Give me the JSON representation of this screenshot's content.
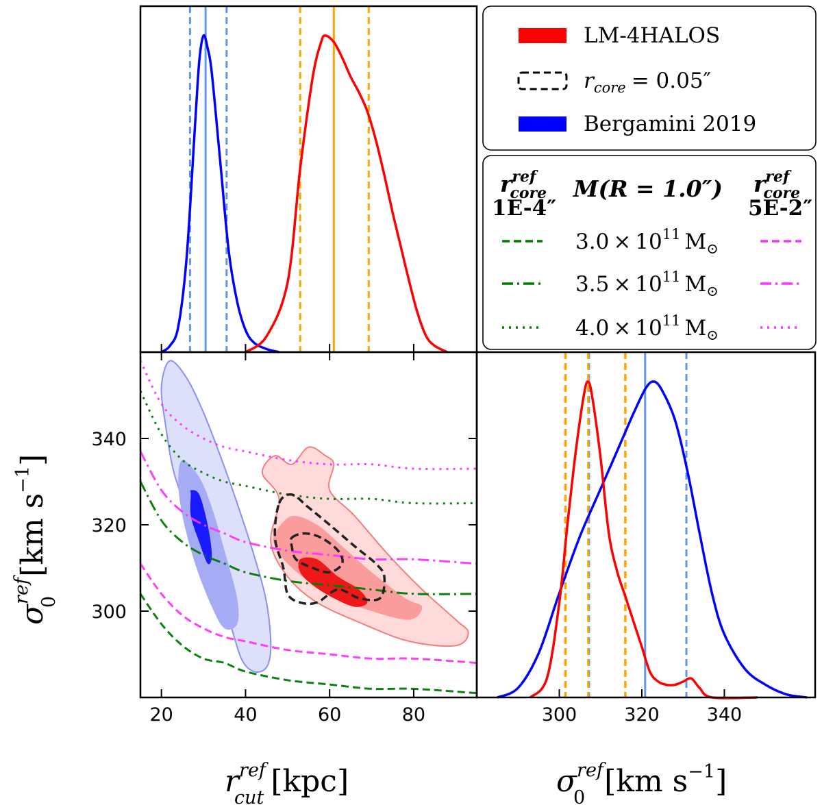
{
  "colors": {
    "lm": "#ff0000",
    "berg": "#0000ff",
    "berg_light": "#6495ed",
    "orange": "#ffa500",
    "green": "#007a00",
    "magenta": "#ff33ff",
    "core_contour": "#222222"
  },
  "legend_top": {
    "lm_label": "LM-4HALOS",
    "rcore_prefix": "r",
    "rcore_sub": "core",
    "rcore_eq": "= 0.05″",
    "berg_label": "Bergamini 2019"
  },
  "legend_mass": {
    "left_header_r": "r",
    "left_header_sup": "ref",
    "left_header_sub": "core",
    "left_value": "1E-4″",
    "center_header": "M(R = 1.0″)",
    "right_header_r": "r",
    "right_header_sup": "ref",
    "right_header_sub": "core",
    "right_value": "5E-2″",
    "rows": [
      {
        "mant": "3.0",
        "times": "×",
        "base": "10",
        "exp": "11",
        "unit": "M",
        "sun": "⊙",
        "style": "dashed"
      },
      {
        "mant": "3.5",
        "times": "×",
        "base": "10",
        "exp": "11",
        "unit": "M",
        "sun": "⊙",
        "style": "dashdot"
      },
      {
        "mant": "4.0",
        "times": "×",
        "base": "10",
        "exp": "11",
        "unit": "M",
        "sun": "⊙",
        "style": "dotted"
      }
    ]
  },
  "axes": {
    "x_label_sym": "r",
    "x_label_sup": "ref",
    "x_label_sub": "cut",
    "x_label_unit": "[kpc]",
    "y_label_sym": "σ",
    "y_label_sup": "ref",
    "y_label_sub": "0",
    "y_label_unit": "[km s",
    "y_label_exp": "−1",
    "y_label_close": "]",
    "x2_label_sym": "σ",
    "x2_label_sup": "ref",
    "x2_label_sub": "0",
    "x2_label_unit": "[km s",
    "x2_label_exp": "−1",
    "x2_label_close": "]"
  },
  "chart_data": {
    "type": "corner",
    "rcut": {
      "xlim": [
        15,
        95
      ],
      "ticks": [
        20,
        40,
        60,
        80
      ],
      "lm_kde": {
        "x": [
          40,
          45,
          50,
          53,
          56,
          58,
          59,
          61,
          63,
          65,
          67,
          69,
          71,
          73,
          75,
          77,
          79,
          81,
          83,
          85,
          88
        ],
        "y": [
          0.0,
          0.05,
          0.22,
          0.58,
          0.87,
          0.98,
          1.0,
          0.98,
          0.93,
          0.87,
          0.82,
          0.76,
          0.67,
          0.56,
          0.44,
          0.33,
          0.22,
          0.12,
          0.05,
          0.02,
          0.0
        ]
      },
      "berg_kde": {
        "x": [
          20,
          22,
          24,
          26,
          28,
          29,
          30,
          31,
          32,
          34,
          36,
          38,
          40,
          42,
          45,
          48
        ],
        "y": [
          0.0,
          0.02,
          0.08,
          0.3,
          0.72,
          0.92,
          1.0,
          0.96,
          0.88,
          0.6,
          0.32,
          0.16,
          0.07,
          0.03,
          0.01,
          0.0
        ]
      },
      "berg_median": 30.5,
      "berg_interval": [
        26.8,
        35.5
      ],
      "lm_median": 61.0,
      "lm_interval": [
        53.0,
        69.3
      ]
    },
    "sigma": {
      "xlim": [
        280,
        362
      ],
      "ticks": [
        300,
        320,
        340
      ],
      "lm_kde": {
        "x": [
          293,
          297,
          300,
          302,
          304,
          306,
          307,
          308,
          310,
          312,
          314,
          316,
          318,
          320,
          322,
          324,
          326,
          328,
          330,
          332,
          334,
          337,
          348
        ],
        "y": [
          0.0,
          0.06,
          0.3,
          0.55,
          0.78,
          0.96,
          1.0,
          0.95,
          0.76,
          0.52,
          0.4,
          0.32,
          0.24,
          0.16,
          0.08,
          0.05,
          0.04,
          0.04,
          0.05,
          0.06,
          0.03,
          0.0,
          0.0
        ]
      },
      "berg_kde": {
        "x": [
          285,
          290,
          295,
          300,
          305,
          310,
          315,
          318,
          321,
          323,
          325,
          328,
          331,
          334,
          337,
          340,
          345,
          350,
          355,
          360
        ],
        "y": [
          0.0,
          0.03,
          0.14,
          0.33,
          0.51,
          0.66,
          0.81,
          0.9,
          0.98,
          1.0,
          0.97,
          0.88,
          0.72,
          0.52,
          0.33,
          0.2,
          0.09,
          0.04,
          0.01,
          0.0
        ]
      },
      "berg_median": 320.8,
      "berg_interval": [
        307.2,
        330.8
      ],
      "lm_median": 307.0,
      "lm_interval": [
        301.5,
        316.0
      ]
    },
    "joint": {
      "xlim": [
        15,
        95
      ],
      "ylim": [
        280,
        360
      ],
      "yticks": [
        300,
        320,
        340
      ],
      "berg_contours": [
        [
          [
            22,
            358
          ],
          [
            26,
            354
          ],
          [
            30,
            346
          ],
          [
            34,
            336
          ],
          [
            38,
            325
          ],
          [
            42,
            313
          ],
          [
            45,
            302
          ],
          [
            46,
            292
          ],
          [
            45,
            287
          ],
          [
            42,
            286
          ],
          [
            39,
            289
          ],
          [
            36,
            298
          ],
          [
            31,
            310
          ],
          [
            27,
            321
          ],
          [
            23,
            332
          ],
          [
            21,
            343
          ],
          [
            20,
            352
          ]
        ],
        [
          [
            25,
            335
          ],
          [
            29,
            331
          ],
          [
            32,
            324
          ],
          [
            35,
            314
          ],
          [
            38,
            303
          ],
          [
            38,
            297
          ],
          [
            35,
            296
          ],
          [
            32,
            301
          ],
          [
            28,
            311
          ],
          [
            25,
            322
          ],
          [
            24,
            330
          ]
        ],
        [
          [
            27,
            328
          ],
          [
            29,
            327
          ],
          [
            31,
            320
          ],
          [
            32,
            313
          ],
          [
            31,
            311
          ],
          [
            29,
            316
          ],
          [
            27,
            322
          ],
          [
            27,
            327
          ]
        ]
      ],
      "lm_contours": [
        [
          [
            44,
            332
          ],
          [
            47,
            336
          ],
          [
            51,
            334
          ],
          [
            55,
            338
          ],
          [
            59,
            336
          ],
          [
            61,
            334
          ],
          [
            60,
            328
          ],
          [
            66,
            322
          ],
          [
            74,
            313
          ],
          [
            82,
            305
          ],
          [
            90,
            298
          ],
          [
            93,
            295
          ],
          [
            90,
            292
          ],
          [
            79,
            293
          ],
          [
            68,
            297
          ],
          [
            57,
            302
          ],
          [
            50,
            308
          ],
          [
            46,
            316
          ],
          [
            48,
            326
          ]
        ],
        [
          [
            47,
            318
          ],
          [
            51,
            322
          ],
          [
            57,
            320
          ],
          [
            63,
            315
          ],
          [
            70,
            309
          ],
          [
            78,
            303
          ],
          [
            82,
            301
          ],
          [
            79,
            298
          ],
          [
            70,
            300
          ],
          [
            62,
            303
          ],
          [
            55,
            307
          ],
          [
            50,
            311
          ],
          [
            47,
            315
          ]
        ],
        [
          [
            53,
            312
          ],
          [
            57,
            312
          ],
          [
            62,
            308
          ],
          [
            67,
            305
          ],
          [
            69,
            302
          ],
          [
            66,
            301
          ],
          [
            61,
            303
          ],
          [
            56,
            306
          ],
          [
            53,
            309
          ]
        ]
      ],
      "rcore_contours": [
        [
          [
            48,
            325
          ],
          [
            51,
            327
          ],
          [
            55,
            324
          ],
          [
            60,
            320
          ],
          [
            66,
            315
          ],
          [
            71,
            311
          ],
          [
            73,
            308
          ],
          [
            72,
            303
          ],
          [
            67,
            303
          ],
          [
            62,
            305
          ],
          [
            57,
            302
          ],
          [
            53,
            302
          ],
          [
            50,
            304
          ],
          [
            49,
            310
          ],
          [
            47,
            317
          ]
        ],
        [
          [
            51,
            317
          ],
          [
            54,
            318
          ],
          [
            58,
            317
          ],
          [
            62,
            314
          ],
          [
            63,
            311
          ],
          [
            60,
            309
          ],
          [
            56,
            310
          ],
          [
            52,
            312
          ],
          [
            51,
            315
          ]
        ]
      ],
      "mass_curves": [
        {
          "label": "3.0",
          "rcore": "1E-4",
          "style": "dashed",
          "y": [
            [
              15,
              304
            ],
            [
              20,
              297
            ],
            [
              25,
              292
            ],
            [
              30,
              289
            ],
            [
              35,
              288
            ],
            [
              40,
              286
            ],
            [
              50,
              284
            ],
            [
              60,
              283
            ],
            [
              70,
              282
            ],
            [
              80,
              282
            ],
            [
              95,
              281
            ]
          ]
        },
        {
          "label": "3.5",
          "rcore": "1E-4",
          "style": "dashdot",
          "y": [
            [
              15,
              330
            ],
            [
              20,
              321
            ],
            [
              25,
              316
            ],
            [
              30,
              313
            ],
            [
              35,
              311
            ],
            [
              40,
              309
            ],
            [
              50,
              307
            ],
            [
              60,
              306
            ],
            [
              70,
              305
            ],
            [
              80,
              304
            ],
            [
              95,
              304
            ]
          ]
        },
        {
          "label": "4.0",
          "rcore": "1E-4",
          "style": "dotted",
          "y": [
            [
              15,
              351
            ],
            [
              20,
              341
            ],
            [
              25,
              335
            ],
            [
              30,
              332
            ],
            [
              35,
              330
            ],
            [
              40,
              329
            ],
            [
              50,
              327
            ],
            [
              60,
              326
            ],
            [
              70,
              326
            ],
            [
              80,
              325
            ],
            [
              95,
              325
            ]
          ]
        },
        {
          "label": "3.0",
          "rcore": "5E-2",
          "style": "dashed",
          "y": [
            [
              15,
              311
            ],
            [
              20,
              304
            ],
            [
              25,
              299
            ],
            [
              30,
              296
            ],
            [
              35,
              294
            ],
            [
              40,
              293
            ],
            [
              50,
              291
            ],
            [
              60,
              290
            ],
            [
              70,
              289
            ],
            [
              80,
              289
            ],
            [
              95,
              288
            ]
          ]
        },
        {
          "label": "3.5",
          "rcore": "5E-2",
          "style": "dashdot",
          "y": [
            [
              15,
              337
            ],
            [
              20,
              328
            ],
            [
              25,
              323
            ],
            [
              30,
              320
            ],
            [
              35,
              318
            ],
            [
              40,
              316
            ],
            [
              50,
              314
            ],
            [
              60,
              313
            ],
            [
              70,
              312
            ],
            [
              80,
              312
            ],
            [
              95,
              311
            ]
          ]
        },
        {
          "label": "4.0",
          "rcore": "5E-2",
          "style": "dotted",
          "y": [
            [
              15,
              358
            ],
            [
              20,
              348
            ],
            [
              25,
              343
            ],
            [
              30,
              340
            ],
            [
              35,
              338
            ],
            [
              40,
              337
            ],
            [
              50,
              335
            ],
            [
              60,
              334
            ],
            [
              70,
              334
            ],
            [
              80,
              333
            ],
            [
              95,
              333
            ]
          ]
        }
      ]
    }
  }
}
